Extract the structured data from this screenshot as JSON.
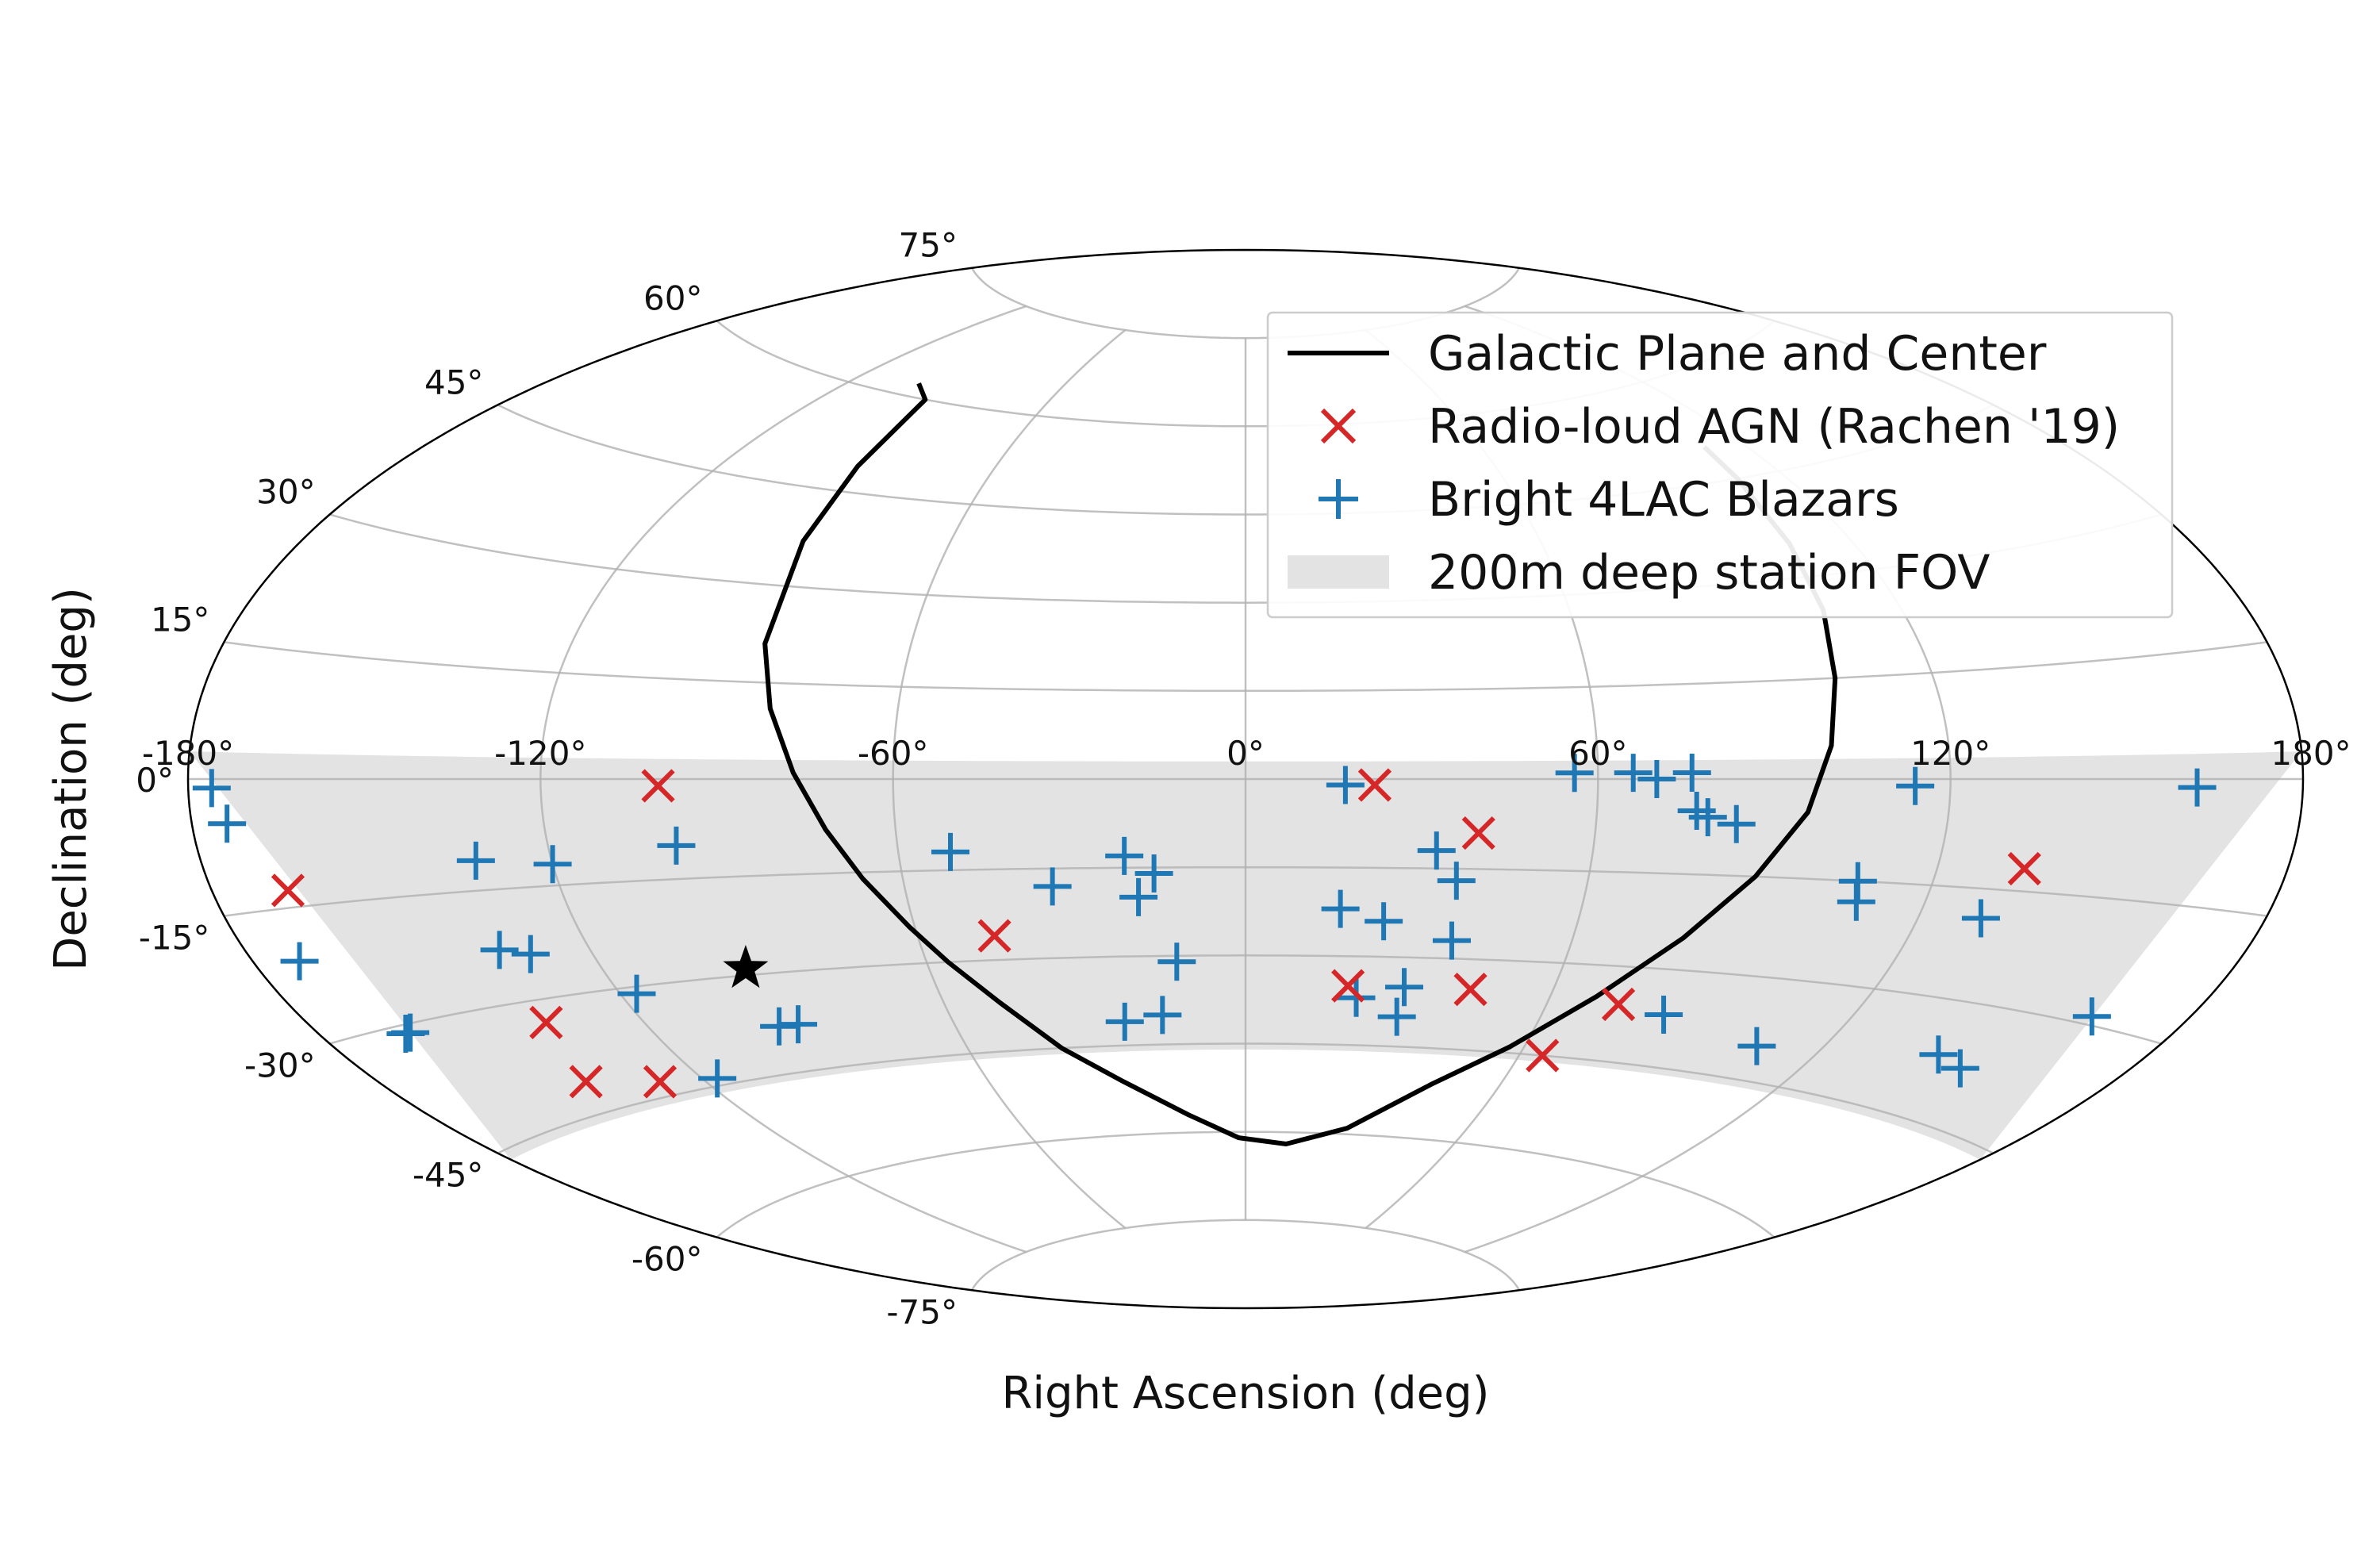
{
  "chart_data": {
    "type": "scatter",
    "projection": "aitoff",
    "xlabel": "Right Ascension (deg)",
    "ylabel": "Declination (deg)",
    "xlim": [
      -180,
      180
    ],
    "ylim": [
      -90,
      90
    ],
    "x_ticks": [
      -180,
      -120,
      -60,
      0,
      60,
      120,
      180
    ],
    "x_tick_labels": [
      "-180°",
      "-120°",
      "-60°",
      "0°",
      "60°",
      "120°",
      "180°"
    ],
    "y_ticks": [
      75,
      60,
      45,
      30,
      15,
      0,
      -15,
      -30,
      -45,
      -60,
      -75
    ],
    "y_tick_labels": [
      "75°",
      "60°",
      "45°",
      "30°",
      "15°",
      "0°",
      "-15°",
      "-30°",
      "-45°",
      "-60°",
      "-75°"
    ],
    "grid": true,
    "legend": {
      "location": "top-right",
      "entries": [
        {
          "label": "Galactic Plane and Center",
          "marker": "line",
          "color": "#000000"
        },
        {
          "label": "Radio-loud AGN (Rachen '19)",
          "marker": "x",
          "color": "#d62728"
        },
        {
          "label": "Bright 4LAC Blazars",
          "marker": "+",
          "color": "#1f77b4"
        },
        {
          "label": "200m deep station FOV",
          "marker": "band",
          "color": "#e3e3e3"
        }
      ]
    },
    "fov_band": {
      "name": "200m deep station FOV",
      "dec_min": -46,
      "dec_max": 3,
      "color": "#e3e3e3"
    },
    "series": [
      {
        "name": "Galactic Plane and Center",
        "type": "line",
        "color": "#000000",
        "points": [
          [
            -102,
            62
          ],
          [
            -94,
            60
          ],
          [
            -91,
            49
          ],
          [
            -89,
            37
          ],
          [
            -86,
            21
          ],
          [
            -82,
            11
          ],
          [
            -77,
            1
          ],
          [
            -72,
            -8
          ],
          [
            -67,
            -16
          ],
          [
            -61,
            -24
          ],
          [
            -56,
            -30
          ],
          [
            -49,
            -37
          ],
          [
            -40,
            -45
          ],
          [
            -29,
            -51
          ],
          [
            -15,
            -57
          ],
          [
            -2,
            -61
          ],
          [
            12,
            -62
          ],
          [
            28,
            -59
          ],
          [
            44,
            -51
          ],
          [
            57,
            -44
          ],
          [
            69,
            -35
          ],
          [
            80,
            -25
          ],
          [
            89,
            -15
          ],
          [
            96,
            -5
          ],
          [
            100,
            5
          ],
          [
            103,
            15
          ],
          [
            106,
            25
          ],
          [
            108,
            35
          ],
          [
            110,
            45
          ],
          [
            111,
            50
          ]
        ],
        "galactic_center": [
          -94,
          -29
        ]
      },
      {
        "name": "Radio-loud AGN (Rachen '19)",
        "type": "scatter",
        "marker": "x",
        "color": "#d62728",
        "points": [
          [
            -167,
            -13
          ],
          [
            -100,
            -1
          ],
          [
            -46,
            -26
          ],
          [
            22,
            -1
          ],
          [
            40,
            -9
          ],
          [
            -138,
            -33
          ],
          [
            -143,
            -41
          ],
          [
            -129,
            -43
          ],
          [
            20,
            -35
          ],
          [
            44,
            -35
          ],
          [
            65,
            -45
          ],
          [
            74,
            -36
          ],
          [
            135,
            -12
          ]
        ]
      },
      {
        "name": "Bright 4LAC Blazars",
        "type": "scatter",
        "marker": "+",
        "color": "#1f77b4",
        "points": [
          [
            -176,
            -1
          ],
          [
            -174,
            -5
          ],
          [
            -172,
            -21
          ],
          [
            -165,
            -31
          ],
          [
            -164,
            -31
          ],
          [
            -133,
            -11
          ],
          [
            -120,
            -12
          ],
          [
            -98,
            -10
          ],
          [
            -136,
            -23
          ],
          [
            -131,
            -24
          ],
          [
            -117,
            -31
          ],
          [
            -117,
            -44
          ],
          [
            -95,
            -38
          ],
          [
            -91,
            -38
          ],
          [
            -51,
            -12
          ],
          [
            -34,
            -18
          ],
          [
            -21,
            -13
          ],
          [
            -16,
            -16
          ],
          [
            -19,
            -20
          ],
          [
            -13,
            -31
          ],
          [
            -25,
            -41
          ],
          [
            -17,
            -40
          ],
          [
            17,
            -1
          ],
          [
            17,
            -22
          ],
          [
            25,
            -24
          ],
          [
            33,
            -12
          ],
          [
            38,
            -27
          ],
          [
            37,
            -17
          ],
          [
            31,
            -35
          ],
          [
            22,
            -37
          ],
          [
            31,
            -40
          ],
          [
            56,
            1
          ],
          [
            66,
            1
          ],
          [
            70,
            0
          ],
          [
            76,
            1
          ],
          [
            77,
            -5
          ],
          [
            79,
            -6
          ],
          [
            84,
            -7
          ],
          [
            84,
            -37
          ],
          [
            107,
            -15
          ],
          [
            108,
            -18
          ],
          [
            114,
            -1
          ],
          [
            131,
            -19
          ],
          [
            107,
            -40
          ],
          [
            162,
            -1
          ],
          [
            163,
            -29
          ],
          [
            143,
            -37
          ],
          [
            150,
            -38
          ]
        ]
      }
    ]
  }
}
